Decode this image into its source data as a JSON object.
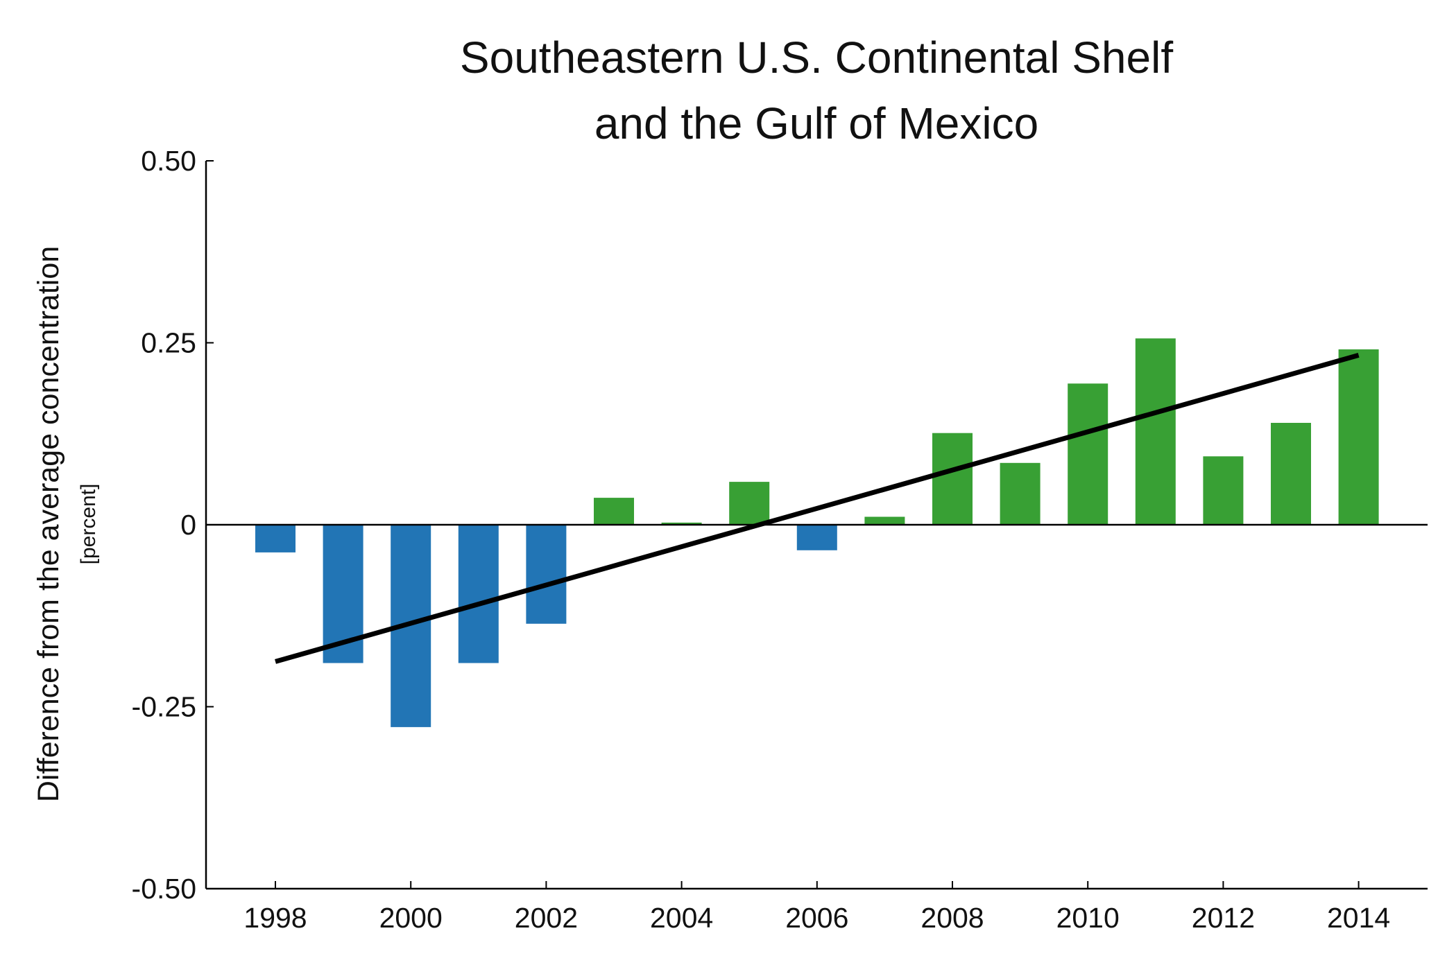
{
  "chart_data": {
    "type": "bar",
    "title_lines": [
      "Southeastern U.S. Continental Shelf",
      "and the Gulf of Mexico"
    ],
    "ylabel": "Difference from the average concentration",
    "yunit": "[percent]",
    "xlabel": "",
    "ylim": [
      -0.5,
      0.5
    ],
    "yticks": [
      0.5,
      0.25,
      0,
      -0.25,
      -0.5
    ],
    "ytick_labels": [
      "0.50",
      "0.25",
      "0",
      "-0.25",
      "-0.50"
    ],
    "xticks": [
      1998,
      2000,
      2002,
      2004,
      2006,
      2008,
      2010,
      2012,
      2014
    ],
    "xtick_labels": [
      "1998",
      "2000",
      "2002",
      "2004",
      "2006",
      "2008",
      "2010",
      "2012",
      "2014"
    ],
    "xlim": [
      1997,
      2015
    ],
    "categories": [
      1998,
      1999,
      2000,
      2001,
      2002,
      2003,
      2004,
      2005,
      2006,
      2007,
      2008,
      2009,
      2010,
      2011,
      2012,
      2013,
      2014
    ],
    "values": [
      -0.038,
      -0.19,
      -0.278,
      -0.19,
      -0.136,
      0.037,
      0.003,
      0.059,
      -0.035,
      0.011,
      0.126,
      0.085,
      0.194,
      0.256,
      0.094,
      0.14,
      0.241
    ],
    "colors": {
      "negative": "#2275b5",
      "positive": "#38a034",
      "trend": "#000000",
      "axis": "#000000"
    },
    "trend_line": {
      "x": [
        1998,
        2014
      ],
      "y": [
        -0.188,
        0.233
      ]
    },
    "grid": false,
    "legend": "none"
  }
}
